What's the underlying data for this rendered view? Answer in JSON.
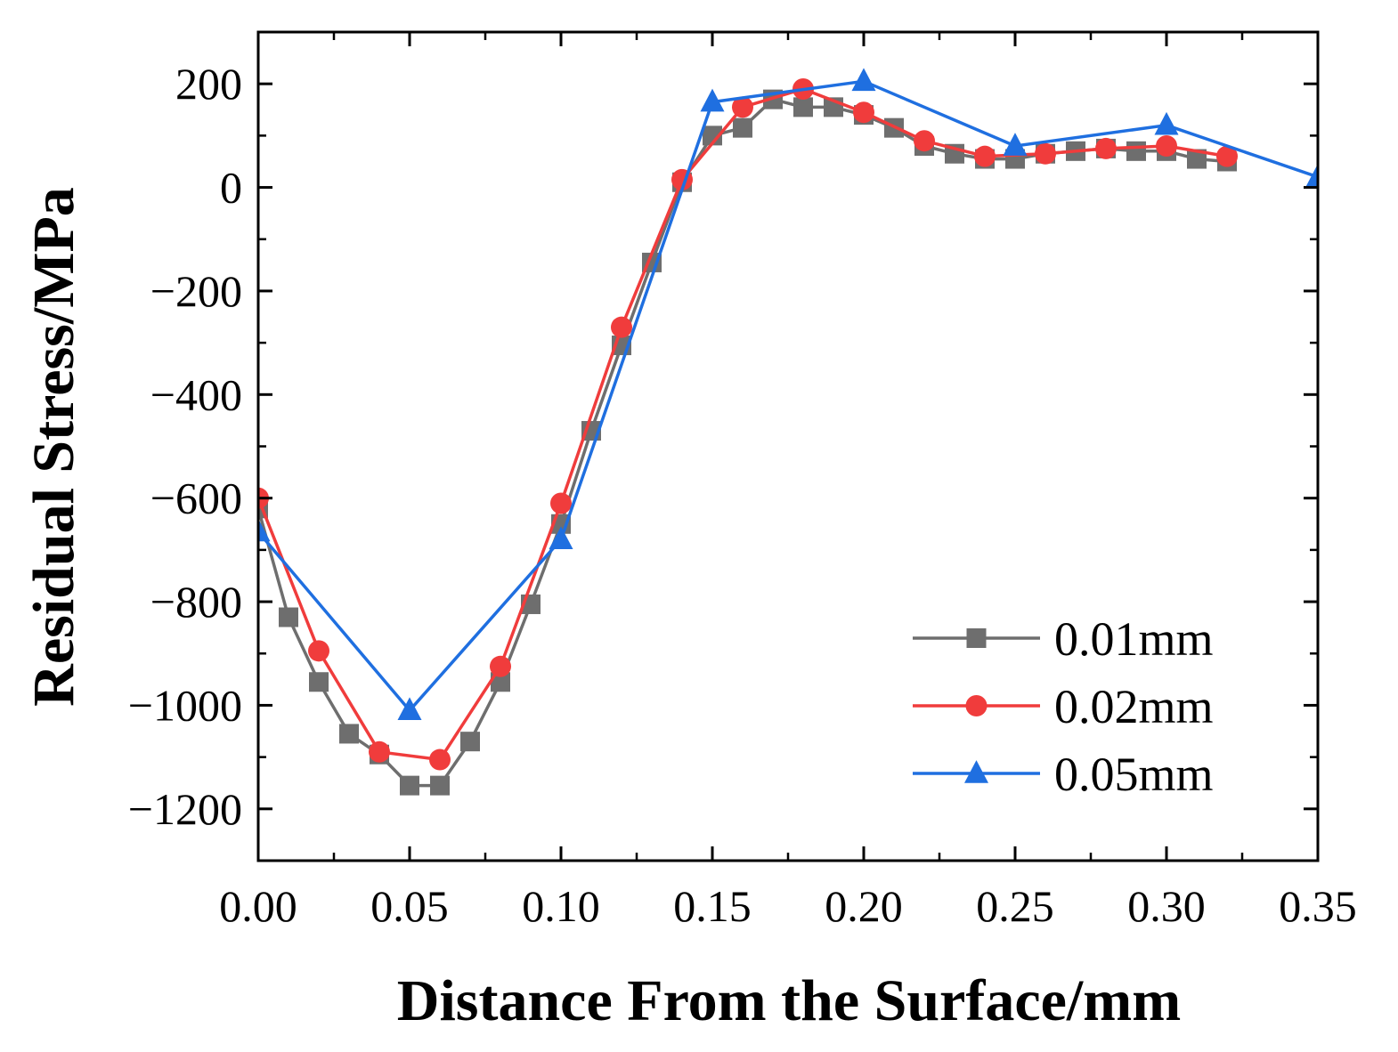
{
  "chart_data": {
    "type": "line",
    "title": "",
    "xlabel": "Distance From the Surface/mm",
    "ylabel": "Residual Stress/MPa",
    "xlim": [
      0,
      0.35
    ],
    "ylim": [
      -1300,
      300
    ],
    "x_ticks": [
      0,
      0.05,
      0.1,
      0.15,
      0.2,
      0.25,
      0.3,
      0.35
    ],
    "x_tick_labels": [
      "0.00",
      "0.05",
      "0.10",
      "0.15",
      "0.20",
      "0.25",
      "0.30",
      "0.35"
    ],
    "y_ticks": [
      200,
      0,
      -200,
      -400,
      -600,
      -800,
      -1000,
      -1200
    ],
    "y_tick_labels": [
      "200",
      "0",
      "−200",
      "−400",
      "−600",
      "−800",
      "−1000",
      "−1200"
    ],
    "legend_position": "bottom-right",
    "grid": false,
    "series": [
      {
        "name": "0.01mm",
        "color": "#6e6e6e",
        "marker": "square",
        "x": [
          0,
          0.01,
          0.02,
          0.03,
          0.04,
          0.05,
          0.06,
          0.07,
          0.08,
          0.09,
          0.1,
          0.11,
          0.12,
          0.13,
          0.14,
          0.15,
          0.16,
          0.17,
          0.18,
          0.19,
          0.2,
          0.21,
          0.22,
          0.23,
          0.24,
          0.25,
          0.26,
          0.27,
          0.28,
          0.29,
          0.3,
          0.31,
          0.32
        ],
        "y": [
          -620,
          -830,
          -955,
          -1055,
          -1095,
          -1155,
          -1155,
          -1070,
          -955,
          -805,
          -650,
          -470,
          -305,
          -145,
          10,
          100,
          115,
          170,
          155,
          155,
          140,
          115,
          80,
          65,
          55,
          55,
          65,
          70,
          75,
          70,
          70,
          55,
          50
        ]
      },
      {
        "name": "0.02mm",
        "color": "#f03c3c",
        "marker": "circle",
        "x": [
          0,
          0.02,
          0.04,
          0.06,
          0.08,
          0.1,
          0.12,
          0.14,
          0.16,
          0.18,
          0.2,
          0.22,
          0.24,
          0.26,
          0.28,
          0.3,
          0.32
        ],
        "y": [
          -600,
          -895,
          -1090,
          -1105,
          -925,
          -610,
          -270,
          15,
          155,
          190,
          145,
          90,
          60,
          65,
          75,
          80,
          60
        ]
      },
      {
        "name": "0.05mm",
        "color": "#1f6fe0",
        "marker": "triangle",
        "x": [
          0,
          0.05,
          0.1,
          0.15,
          0.2,
          0.25,
          0.3,
          0.35
        ],
        "y": [
          -665,
          -1010,
          -680,
          165,
          205,
          80,
          120,
          20
        ]
      }
    ]
  }
}
